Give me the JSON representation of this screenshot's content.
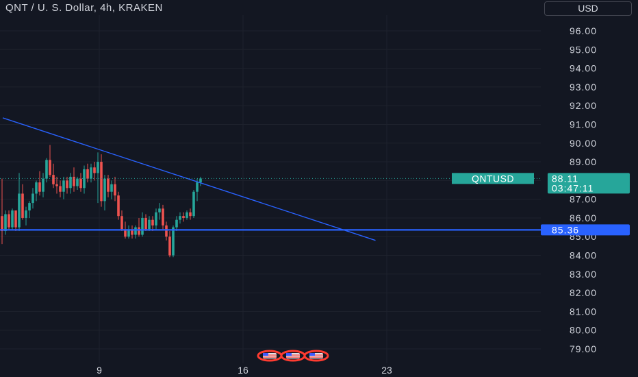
{
  "header": {
    "title": "QNT / U. S. Dollar, 4h, KRAKEN"
  },
  "currency_button": {
    "label": "USD"
  },
  "colors": {
    "background": "#131722",
    "up": "#26a69a",
    "down": "#ef5350",
    "trendline": "#2962ff",
    "grid": "#1e222d",
    "axis_text": "#d1d4dc",
    "price_tag": "#26a69a",
    "level_tag": "#2962ff",
    "event_flag": "#ff3b30"
  },
  "chart_data": {
    "type": "candlestick",
    "title": "QNT / U. S. Dollar, 4h, KRAKEN",
    "symbol": "QNTUSD",
    "y_ticks": [
      "96.00",
      "95.00",
      "94.00",
      "93.00",
      "92.00",
      "91.00",
      "90.00",
      "89.00",
      "88.00",
      "87.00",
      "86.00",
      "85.00",
      "84.00",
      "83.00",
      "82.00",
      "81.00",
      "80.00",
      "79.00"
    ],
    "x_ticks": [
      {
        "label": "9",
        "day": 9
      },
      {
        "label": "16",
        "day": 16
      },
      {
        "label": "23",
        "day": 23
      }
    ],
    "ylim": [
      78.5,
      97.3
    ],
    "xlim_days": [
      4.3,
      24.2
    ],
    "last_price": {
      "label": "QNTUSD",
      "value": "88.11",
      "countdown": "03:47:11"
    },
    "horizontal_level": {
      "value": 85.36,
      "label": "85.36"
    },
    "trendline": {
      "start": {
        "day": 4.3,
        "price": 91.35
      },
      "end": {
        "day": 22.45,
        "price": 84.8
      }
    },
    "event_markers": {
      "count": 3
    },
    "candles": [
      [
        86.1,
        88.1,
        84.6,
        85.3
      ],
      [
        85.3,
        86.4,
        85.1,
        86.2
      ],
      [
        86.2,
        86.4,
        85.4,
        85.5
      ],
      [
        85.5,
        86.5,
        85.4,
        86.4
      ],
      [
        86.4,
        86.4,
        85.3,
        85.5
      ],
      [
        85.5,
        88.4,
        85.3,
        87.3
      ],
      [
        87.3,
        87.8,
        85.9,
        86.0
      ],
      [
        86.0,
        86.6,
        85.6,
        86.4
      ],
      [
        86.4,
        86.9,
        86.0,
        86.8
      ],
      [
        86.8,
        87.6,
        86.5,
        87.3
      ],
      [
        87.3,
        88.0,
        86.9,
        87.9
      ],
      [
        87.9,
        88.5,
        87.2,
        87.4
      ],
      [
        87.4,
        88.4,
        87.1,
        88.1
      ],
      [
        88.1,
        89.2,
        87.9,
        89.1
      ],
      [
        89.1,
        89.9,
        88.2,
        88.3
      ],
      [
        88.3,
        88.9,
        87.6,
        87.8
      ],
      [
        87.8,
        88.2,
        87.3,
        87.7
      ],
      [
        87.7,
        88.0,
        87.1,
        87.4
      ],
      [
        87.4,
        88.2,
        87.0,
        88.0
      ],
      [
        88.0,
        88.2,
        87.3,
        87.6
      ],
      [
        87.6,
        88.4,
        87.3,
        88.2
      ],
      [
        88.2,
        88.7,
        87.4,
        87.7
      ],
      [
        87.7,
        88.2,
        87.5,
        88.1
      ],
      [
        88.1,
        88.4,
        87.4,
        87.6
      ],
      [
        87.6,
        88.8,
        87.3,
        88.6
      ],
      [
        88.6,
        88.9,
        87.9,
        88.1
      ],
      [
        88.1,
        88.9,
        87.9,
        88.7
      ],
      [
        88.7,
        89.0,
        88.0,
        88.4
      ],
      [
        88.4,
        89.5,
        86.8,
        89.0
      ],
      [
        89.0,
        89.4,
        86.6,
        86.9
      ],
      [
        86.9,
        88.3,
        86.4,
        88.1
      ],
      [
        88.1,
        88.3,
        87.1,
        87.4
      ],
      [
        87.4,
        88.0,
        87.0,
        87.8
      ],
      [
        87.8,
        88.2,
        86.9,
        87.2
      ],
      [
        87.2,
        87.4,
        85.9,
        86.1
      ],
      [
        86.1,
        86.4,
        85.3,
        85.4
      ],
      [
        85.4,
        85.8,
        84.9,
        85.0
      ],
      [
        85.0,
        85.6,
        84.9,
        85.4
      ],
      [
        85.4,
        85.6,
        84.9,
        85.1
      ],
      [
        85.1,
        85.6,
        84.9,
        85.5
      ],
      [
        85.5,
        86.0,
        85.0,
        85.1
      ],
      [
        85.1,
        86.3,
        85.0,
        86.0
      ],
      [
        86.0,
        86.2,
        85.3,
        85.4
      ],
      [
        85.4,
        86.1,
        85.3,
        85.9
      ],
      [
        85.9,
        86.1,
        85.3,
        85.6
      ],
      [
        85.6,
        86.5,
        85.4,
        86.3
      ],
      [
        86.3,
        86.8,
        85.9,
        86.5
      ],
      [
        86.5,
        86.7,
        85.4,
        85.6
      ],
      [
        85.6,
        85.8,
        84.8,
        85.0
      ],
      [
        85.0,
        85.3,
        83.9,
        84.0
      ],
      [
        84.0,
        85.6,
        83.9,
        85.5
      ],
      [
        85.5,
        86.1,
        85.3,
        85.9
      ],
      [
        85.9,
        86.3,
        85.7,
        86.1
      ],
      [
        86.1,
        86.3,
        85.8,
        86.0
      ],
      [
        86.0,
        86.4,
        85.9,
        86.3
      ],
      [
        86.3,
        86.5,
        85.9,
        86.1
      ],
      [
        86.1,
        87.5,
        86.0,
        87.4
      ],
      [
        87.4,
        88.1,
        86.9,
        87.9
      ],
      [
        87.9,
        88.2,
        87.7,
        88.11
      ]
    ]
  }
}
